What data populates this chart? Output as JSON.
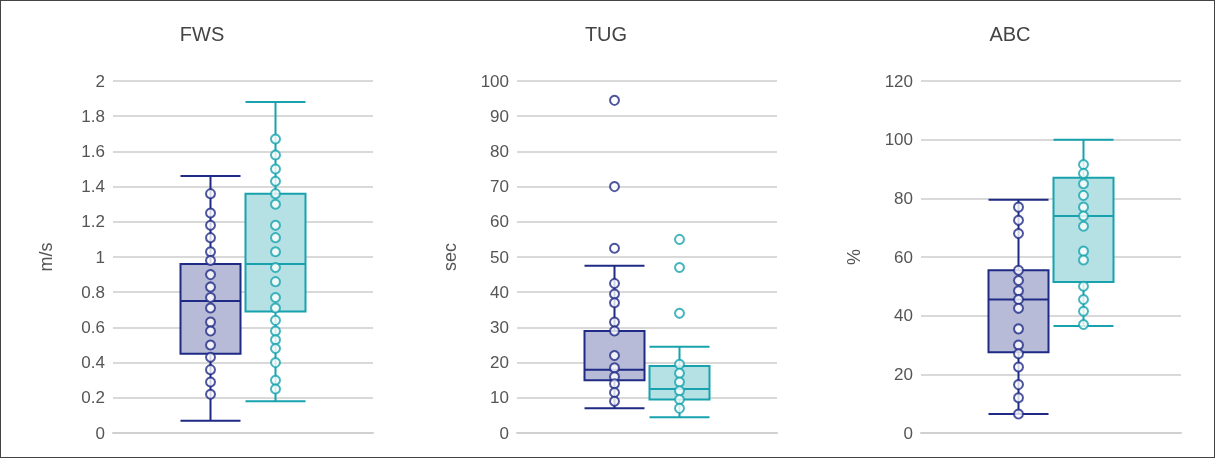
{
  "chart_data": [
    {
      "type": "box",
      "title": "FWS",
      "ylabel": "m/s",
      "categories": [
        null
      ],
      "ylim": [
        0,
        2
      ],
      "yticks": [
        0,
        0.2,
        0.4,
        0.6,
        0.8,
        1,
        1.2,
        1.4,
        1.6,
        1.8,
        2
      ],
      "grid": "y",
      "tick_labels": "y",
      "marker": "circle",
      "series": [
        {
          "color": "#1f2a85",
          "boxes": [
            {
              "low": 0.07,
              "q1": 0.45,
              "median": 0.75,
              "q3": 0.96,
              "high": 1.46
            }
          ]
        },
        {
          "color": "#17a2ad",
          "boxes": [
            {
              "low": 0.18,
              "q1": 0.69,
              "median": 0.96,
              "q3": 1.36,
              "high": 1.88
            }
          ]
        },
        {
          "type": "scatter",
          "color": "#1f2a85",
          "x": [
            null,
            null,
            null,
            null,
            null,
            null,
            null,
            null,
            null,
            null,
            null,
            null,
            null,
            null,
            null,
            null,
            null
          ],
          "values": [
            1.36,
            1.25,
            1.18,
            1.11,
            1.03,
            0.98,
            0.9,
            0.83,
            0.77,
            0.71,
            0.63,
            0.58,
            0.5,
            0.43,
            0.36,
            0.29,
            0.22
          ]
        },
        {
          "type": "scatter",
          "color": "#17a2ad",
          "x": [
            null,
            null,
            null,
            null,
            null,
            null,
            null,
            null,
            null,
            null,
            null,
            null,
            null,
            null,
            null,
            null,
            null,
            null,
            null,
            null
          ],
          "values": [
            1.67,
            1.58,
            1.5,
            1.43,
            1.36,
            1.3,
            1.18,
            1.11,
            1.03,
            0.94,
            0.86,
            0.77,
            0.71,
            0.64,
            0.58,
            0.53,
            0.48,
            0.4,
            0.3,
            0.25
          ]
        }
      ]
    },
    {
      "type": "box",
      "title": "TUG",
      "ylabel": "sec",
      "categories": [
        null
      ],
      "ylim": [
        0,
        100
      ],
      "yticks": [
        0,
        10,
        20,
        30,
        40,
        50,
        60,
        70,
        80,
        90,
        100
      ],
      "grid": "y",
      "tick_labels": "y",
      "marker": "circle",
      "series": [
        {
          "color": "#1f2a85",
          "boxes": [
            {
              "low": 7,
              "q1": 15,
              "median": 18,
              "q3": 29,
              "high": 47.5,
              "outliers": [
                94.5,
                70,
                52.5
              ]
            }
          ]
        },
        {
          "color": "#17a2ad",
          "boxes": [
            {
              "low": 4.5,
              "q1": 9.5,
              "median": 12.5,
              "q3": 19,
              "high": 24.5,
              "outliers": [
                55,
                47,
                34
              ]
            }
          ]
        },
        {
          "type": "scatter",
          "color": "#1f2a85",
          "x": [
            null,
            null,
            null,
            null,
            null,
            null,
            null,
            null,
            null,
            null,
            null
          ],
          "values": [
            42.5,
            39.5,
            37,
            31.5,
            29,
            22,
            18.5,
            16,
            14,
            11.5,
            9
          ]
        },
        {
          "type": "scatter",
          "color": "#17a2ad",
          "x": [
            null,
            null,
            null,
            null,
            null,
            null
          ],
          "values": [
            19.5,
            17,
            14.5,
            12,
            9.5,
            7
          ]
        }
      ]
    },
    {
      "type": "box",
      "title": "ABC",
      "ylabel": "%",
      "categories": [
        null
      ],
      "ylim": [
        0,
        120
      ],
      "yticks": [
        0,
        20,
        40,
        60,
        80,
        100,
        120
      ],
      "grid": "y",
      "tick_labels": "y",
      "marker": "circle",
      "series": [
        {
          "color": "#1f2a85",
          "boxes": [
            {
              "low": 6.5,
              "q1": 27.5,
              "median": 45.5,
              "q3": 55.5,
              "high": 79.5
            }
          ]
        },
        {
          "color": "#17a2ad",
          "boxes": [
            {
              "low": 36.5,
              "q1": 51.5,
              "median": 74,
              "q3": 87,
              "high": 100
            }
          ]
        },
        {
          "type": "scatter",
          "color": "#1f2a85",
          "x": [
            null,
            null,
            null,
            null,
            null,
            null,
            null,
            null,
            null,
            null,
            null,
            null,
            null,
            null,
            null
          ],
          "values": [
            77,
            72.5,
            68,
            55.5,
            52,
            48.5,
            45.5,
            42.5,
            35.5,
            30,
            27,
            22.5,
            16.5,
            12,
            6.5
          ]
        },
        {
          "type": "scatter",
          "color": "#17a2ad",
          "x": [
            null,
            null,
            null,
            null,
            null,
            null,
            null,
            null,
            null,
            null,
            null,
            null,
            null
          ],
          "values": [
            91.5,
            88.5,
            85,
            81,
            77,
            74,
            70.5,
            62,
            59,
            50,
            45.5,
            41.5,
            37
          ]
        }
      ]
    }
  ]
}
